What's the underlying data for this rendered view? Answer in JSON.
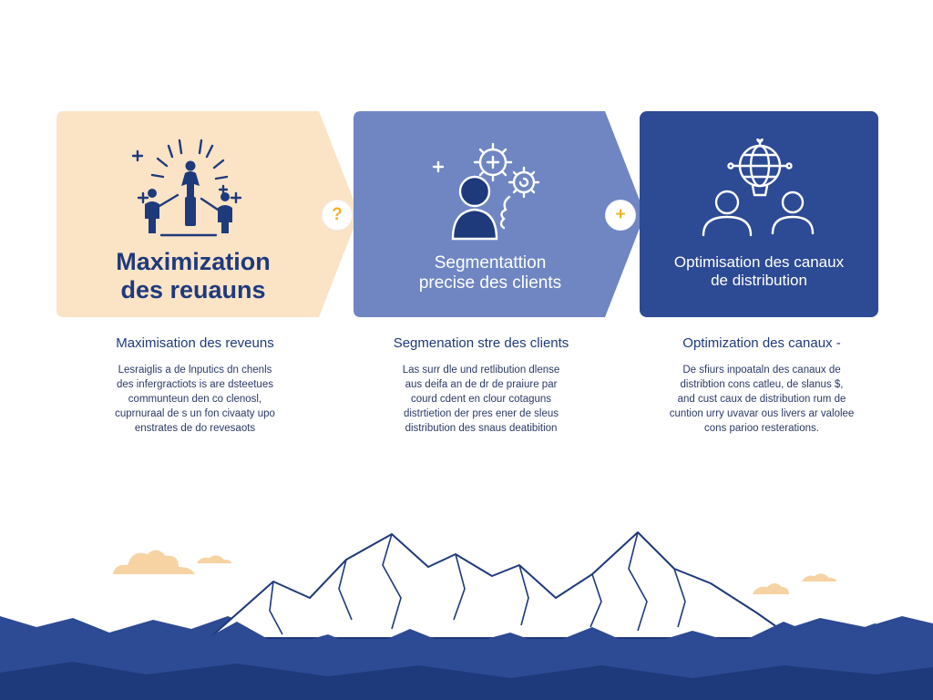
{
  "steps": [
    {
      "id": "maximization",
      "card_title_line1": "Maximization",
      "card_title_line2": "des reuauns",
      "sub_title": "Maximisation des reveuns",
      "description": [
        "Lesraiglis a de lnputics dn chenls",
        "des infergractiots is are dsteetues",
        "communteun den co clenosl,",
        "cuprnuraal de s un fon civaaty upo",
        "enstrates de do revesaots"
      ],
      "card_color": "#fbe3c6",
      "icon": "celebration-people-icon"
    },
    {
      "id": "segmentation",
      "card_title_line1": "Segmentattion",
      "card_title_line2": "precise des clients",
      "sub_title": "Segmenation stre des clients",
      "description": [
        "Las surr dle und retlibution dlense",
        "aus deifa an de dr de praiure par",
        "courd cdent en clour cotaguns",
        "distrtietion der pres ener de sleus",
        "distribution des snaus deatibition"
      ],
      "card_color": "#6f86c3",
      "icon": "person-gears-icon"
    },
    {
      "id": "optimisation",
      "card_title_line1": "Optimisation des canaux",
      "card_title_line2": "de distribution",
      "sub_title": "Optimization des canaux -",
      "description": [
        "De sfiurs inpoataln des canaux de",
        "distribtion cons catleu, de slanus $,",
        "and cust caux de distribution rum de",
        "cuntion urry uvavar ous livers ar valolee",
        "cons parioo resterations."
      ],
      "card_color": "#2d4a94",
      "icon": "globe-network-people-icon"
    }
  ],
  "connectors": [
    "?",
    "+"
  ],
  "colors": {
    "navy": "#1e3a7b",
    "accent_yellow": "#f0b429",
    "cloud": "#f7d3a4",
    "mountain_dark": "#2d4a94"
  }
}
